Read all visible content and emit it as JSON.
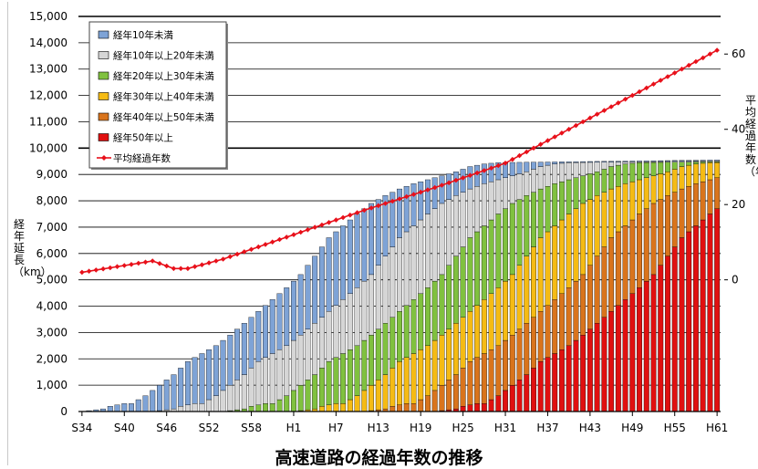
{
  "chart_data": {
    "type": "bar",
    "title": "高速道路の経過年数の推移",
    "ylabel": "経年延長（km）",
    "y2label": "平均経過年数（年）",
    "ylim": [
      0,
      15000
    ],
    "yticks": [
      "0",
      "1,000",
      "2,000",
      "3,000",
      "4,000",
      "5,000",
      "6,000",
      "7,000",
      "8,000",
      "9,000",
      "10,000",
      "11,000",
      "12,000",
      "13,000",
      "14,000",
      "15,000"
    ],
    "y2lim": [
      -35,
      70
    ],
    "y2ticks": [
      "0",
      "20",
      "40",
      "60"
    ],
    "xtick_labels": [
      "S34",
      "S40",
      "S46",
      "S52",
      "S58",
      "H1",
      "H7",
      "H13",
      "H19",
      "H25",
      "H31",
      "H37",
      "H43",
      "H49",
      "H55",
      "H61"
    ],
    "period": {
      "start_year": 1959,
      "end_year": 2049
    },
    "totals_milestones": {
      "years": [
        1959,
        1962,
        1963,
        1964,
        1965,
        1966,
        1968,
        1969,
        1970,
        1972,
        1974,
        1976,
        1978,
        1980,
        1982,
        1984,
        1986,
        1988,
        1990,
        1992,
        1994,
        1996,
        1998,
        2000,
        2002,
        2004,
        2006,
        2008,
        2010,
        2012,
        2014,
        2016,
        2018,
        2049
      ],
      "values": [
        0,
        100,
        200,
        250,
        300,
        300,
        600,
        800,
        1000,
        1400,
        1900,
        2200,
        2500,
        2900,
        3350,
        3800,
        4250,
        4700,
        5200,
        5900,
        6600,
        7050,
        7500,
        7900,
        8200,
        8450,
        8650,
        8800,
        8950,
        9100,
        9300,
        9400,
        9450,
        9550
      ]
    },
    "avg_age_milestones": {
      "years": [
        1959,
        1969,
        1972,
        1974,
        1979,
        1989,
        1999,
        2009,
        2019,
        2029,
        2039,
        2049
      ],
      "values": [
        2,
        5,
        3,
        3,
        5.5,
        12,
        18.5,
        24.5,
        31,
        41,
        51,
        61
      ]
    },
    "series": [
      {
        "name": "経年10年未満",
        "color": "#7ea3d6"
      },
      {
        "name": "経年10年以上20年未満",
        "color": "#d6d6d6"
      },
      {
        "name": "経年20年以上30年未満",
        "color": "#80c13f"
      },
      {
        "name": "経年30年以上40年未満",
        "color": "#f5bb14"
      },
      {
        "name": "経年40年以上50年未満",
        "color": "#d9741c"
      },
      {
        "name": "経年50年以上",
        "color": "#e01010"
      },
      {
        "name": "平均経過年数",
        "color": "#e8101a",
        "type": "line",
        "axis": "right"
      }
    ],
    "grid": true,
    "legend": "top-left"
  }
}
